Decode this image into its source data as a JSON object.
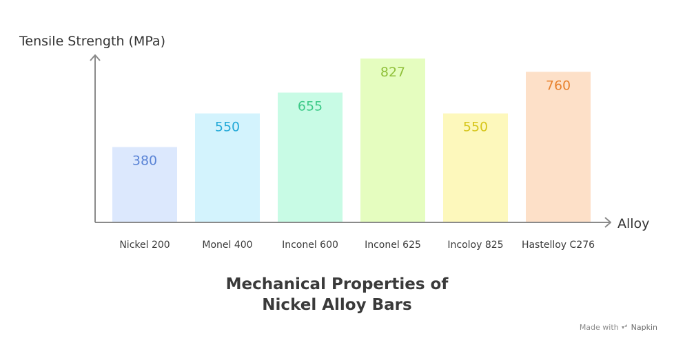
{
  "chart_data": {
    "type": "bar",
    "title_lines": [
      "Mechanical Properties of",
      "Nickel Alloy Bars"
    ],
    "ylabel": "Tensile Strength (MPa)",
    "xlabel": "Alloy",
    "categories": [
      "Nickel 200",
      "Monel 400",
      "Inconel 600",
      "Inconel 625",
      "Incoloy 825",
      "Hastelloy C276"
    ],
    "values": [
      380,
      550,
      655,
      827,
      550,
      760
    ],
    "ylim": [
      0,
      827
    ],
    "grid": false,
    "bar_colors": [
      "#dce8fd",
      "#d3f3fd",
      "#c8fbe5",
      "#e5fdbf",
      "#fdf8bc",
      "#fde0c8"
    ],
    "label_colors": [
      "#5b84d6",
      "#23a9d8",
      "#3cc987",
      "#8fc03a",
      "#d6c61c",
      "#e8822f"
    ]
  },
  "footer": {
    "made_with": "Made with",
    "brand": "Napkin"
  }
}
